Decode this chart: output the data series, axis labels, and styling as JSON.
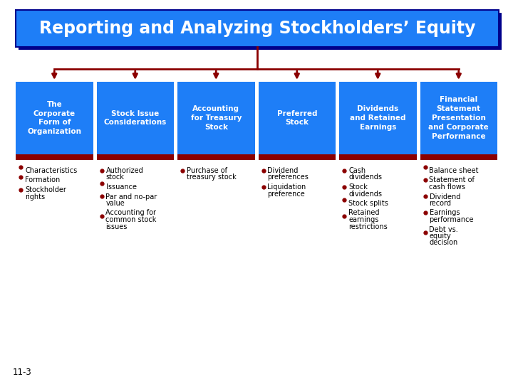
{
  "title": "Reporting and Analyzing Stockholders’ Equity",
  "title_bg": "#1e7ef7",
  "title_shadow": "#00008b",
  "title_text_color": "#ffffff",
  "box_bg": "#1e7ef7",
  "box_stripe": "#8b0000",
  "box_text_color": "#ffffff",
  "bullet_color": "#8b0000",
  "arrow_color": "#8b0000",
  "bg_color": "#ffffff",
  "slide_number": "11-3",
  "title_fontsize": 17,
  "header_fontsize": 7.5,
  "bullet_fontsize": 7.0,
  "columns": [
    {
      "header": "The\nCorporate\nForm of\nOrganization",
      "bullets": [
        [
          "Characteristics"
        ],
        [
          "Formation"
        ],
        [
          "Stockholder",
          "rights"
        ]
      ]
    },
    {
      "header": "Stock Issue\nConsiderations",
      "bullets": [
        [
          "Authorized",
          "stock"
        ],
        [
          "Issuance"
        ],
        [
          "Par and no-par",
          "value"
        ],
        [
          "Accounting for",
          "common stock",
          "issues"
        ]
      ]
    },
    {
      "header": "Accounting\nfor Treasury\nStock",
      "bullets": [
        [
          "Purchase of",
          "treasury stock"
        ]
      ]
    },
    {
      "header": "Preferred\nStock",
      "bullets": [
        [
          "Dividend",
          "preferences"
        ],
        [
          "Liquidation",
          "preference"
        ]
      ]
    },
    {
      "header": "Dividends\nand Retained\nEarnings",
      "bullets": [
        [
          "Cash",
          "dividends"
        ],
        [
          "Stock",
          "dividends"
        ],
        [
          "Stock splits"
        ],
        [
          "Retained",
          "earnings",
          "restrictions"
        ]
      ]
    },
    {
      "header": "Financial\nStatement\nPresentation\nand Corporate\nPerformance",
      "bullets": [
        [
          "Balance sheet"
        ],
        [
          "Statement of",
          "cash flows"
        ],
        [
          "Dividend",
          "record"
        ],
        [
          "Earnings",
          "performance"
        ],
        [
          "Debt vs.",
          "equity",
          "decision"
        ]
      ]
    }
  ]
}
